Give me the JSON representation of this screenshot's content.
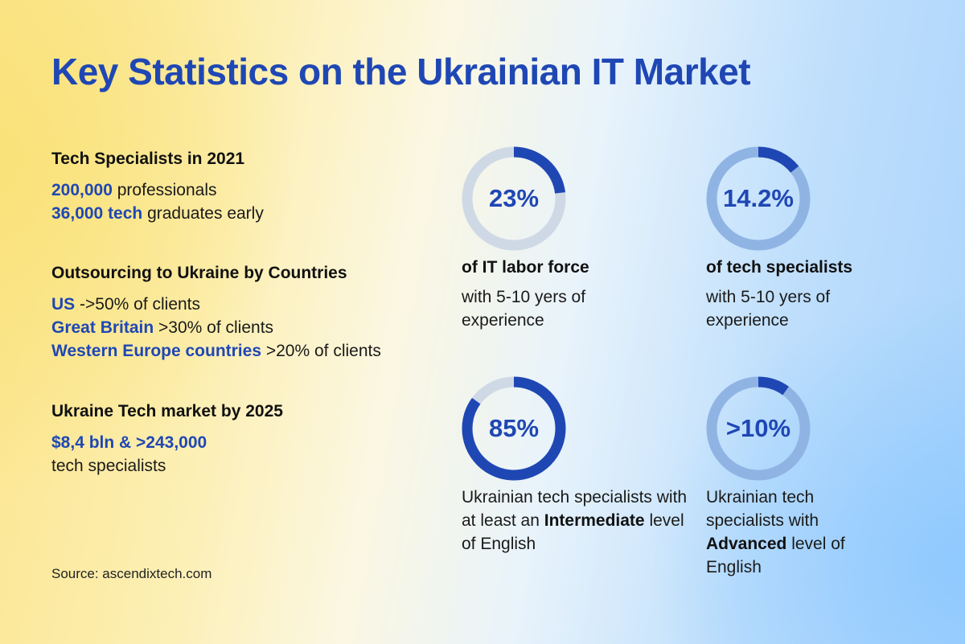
{
  "title": "Key Statistics on the Ukrainian IT Market",
  "sections": {
    "specialists": {
      "heading": "Tech Specialists in 2021",
      "l1_hl": "200,000",
      "l1_rest": " professionals",
      "l2_hl": "36,000 tech",
      "l2_rest": " graduates early"
    },
    "outsourcing": {
      "heading": "Outsourcing to Ukraine by Countries",
      "l1_hl": "US",
      "l1_rest": " ->50% of clients",
      "l2_hl": "Great Britain",
      "l2_rest": " >30% of clients",
      "l3_hl": "Western Europe countries",
      "l3_rest": " >20% of clients"
    },
    "market": {
      "heading": "Ukraine Tech market by 2025",
      "l1_hl": "$8,4 bln & >243,000",
      "l2": "tech specialists"
    }
  },
  "source": "Source: ascendixtech.com",
  "colors": {
    "accent": "#1f47b4",
    "ring_track": "#cfd9e6",
    "ring_track_blue": "#8fb4e4"
  },
  "stats": [
    {
      "value": 23,
      "label": "23%",
      "caption_title": "of IT labor force",
      "caption": "with 5-10 yers of experience"
    },
    {
      "value": 14.2,
      "label": "14.2%",
      "caption_title": "of tech specialists",
      "caption": "with 5-10 yers of experience"
    },
    {
      "value": 85,
      "label": "85%",
      "caption_pre": "Ukrainian tech specialists with at least an ",
      "caption_bold": "Intermediate",
      "caption_post": " level of English"
    },
    {
      "value": 10,
      "label": ">10%",
      "caption_pre": "Ukrainian tech specialists with ",
      "caption_bold": "Advanced",
      "caption_post": " level of English"
    }
  ]
}
